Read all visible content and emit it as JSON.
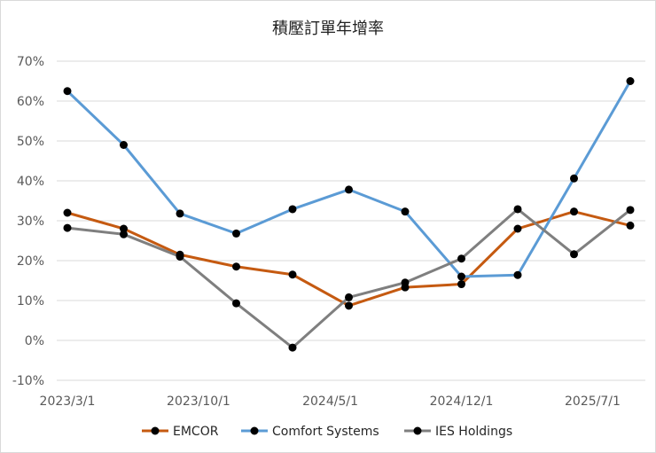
{
  "chart_data": {
    "type": "line",
    "title": "積壓訂單年增率",
    "xlabel": "",
    "ylabel": "",
    "x": [
      "2023/3/1",
      "2023/6/1",
      "2023/9/1",
      "2023/12/1",
      "2024/3/1",
      "2024/6/1",
      "2024/9/1",
      "2024/12/1",
      "2025/3/1",
      "2025/6/1",
      "2025/9/1"
    ],
    "x_tick_labels": [
      "2023/3/1",
      "2023/10/1",
      "2024/5/1",
      "2024/12/1",
      "2025/7/1"
    ],
    "y_tick_labels": [
      "70%",
      "60%",
      "50%",
      "40%",
      "30%",
      "20%",
      "10%",
      "0%",
      "-10%"
    ],
    "ylim": [
      -10,
      70
    ],
    "y_unit": "%",
    "grid": "horizontal",
    "legend_position": "bottom",
    "series": [
      {
        "name": "EMCOR",
        "color": "#c55a11",
        "values": [
          32,
          28,
          21.5,
          18.5,
          16.5,
          8.7,
          13.3,
          14.1,
          28,
          32.3,
          28.8
        ]
      },
      {
        "name": "Comfort Systems",
        "color": "#5b9bd5",
        "values": [
          62.5,
          49,
          31.8,
          26.8,
          32.9,
          37.8,
          32.3,
          16,
          16.4,
          40.6,
          65
        ]
      },
      {
        "name": "IES Holdings",
        "color": "#7f7f7f",
        "values": [
          28.2,
          26.6,
          21,
          9.3,
          -1.8,
          10.8,
          14.5,
          20.5,
          32.9,
          21.6,
          32.7
        ]
      }
    ]
  }
}
